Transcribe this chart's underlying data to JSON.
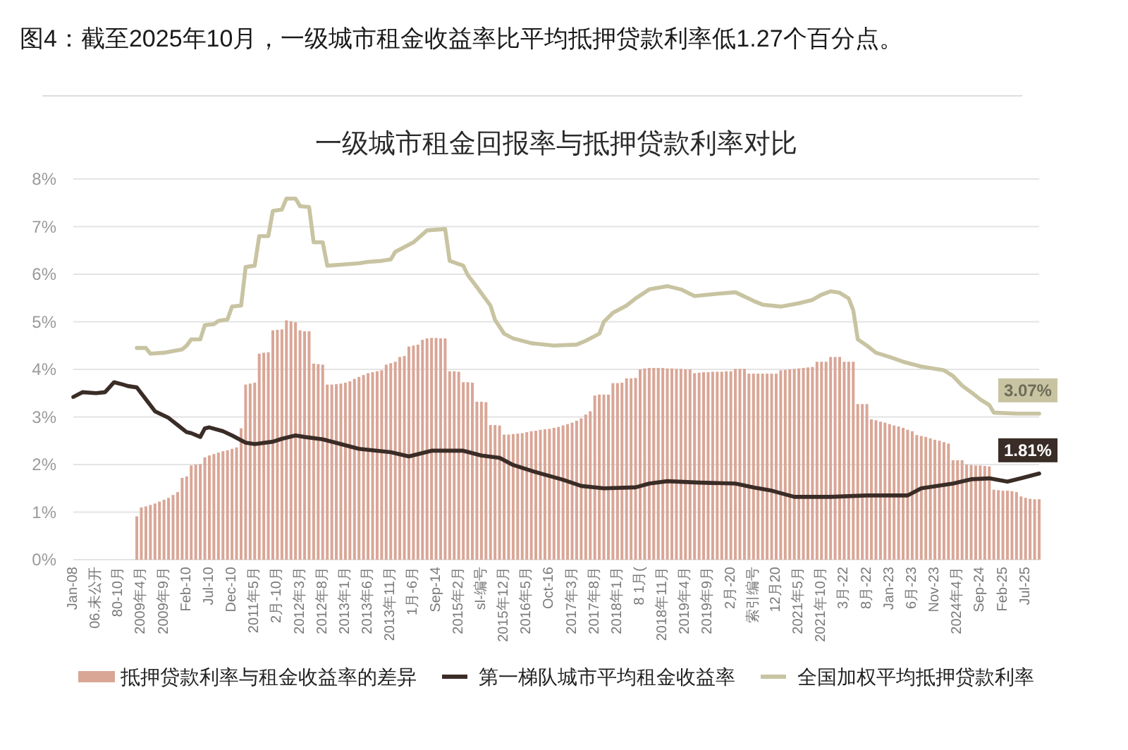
{
  "chart_data": {
    "type": "bar",
    "title": "图4：截至2025年10月，一级城市租金收益率比平均抵押贷款利率低1.27个百分点。",
    "subtitle": "一级城市租金回报率与抵押贷款利率对比",
    "xlim": [
      "2008-01",
      "2025-10"
    ],
    "xticks": [
      {
        "value": "2008-01",
        "label": "Jan-08"
      },
      {
        "value": "2008-06",
        "label": "06.未公开"
      },
      {
        "value": "2008-11",
        "label": "80-10月"
      },
      {
        "value": "2009-04",
        "label": "2009年4月"
      },
      {
        "value": "2009-09",
        "label": "2009年9月"
      },
      {
        "value": "2010-02",
        "label": "Feb-10"
      },
      {
        "value": "2010-07",
        "label": "Jul-10"
      },
      {
        "value": "2010-12",
        "label": "Dec-10"
      },
      {
        "value": "2011-05",
        "label": "2011年5月"
      },
      {
        "value": "2011-10",
        "label": "2月-10月"
      },
      {
        "value": "2012-03",
        "label": "2012年3月"
      },
      {
        "value": "2012-08",
        "label": "2012年8月"
      },
      {
        "value": "2013-01",
        "label": "2013年1月"
      },
      {
        "value": "2013-06",
        "label": "2013年6月"
      },
      {
        "value": "2013-11",
        "label": "2013年11月"
      },
      {
        "value": "2014-04",
        "label": "1月-6月"
      },
      {
        "value": "2014-09",
        "label": "Sep-14"
      },
      {
        "value": "2015-02",
        "label": "2015年2月"
      },
      {
        "value": "2015-07",
        "label": "sl-编号"
      },
      {
        "value": "2015-12",
        "label": "2015年12月"
      },
      {
        "value": "2016-05",
        "label": "2016年5月"
      },
      {
        "value": "2016-10",
        "label": "Oct-16"
      },
      {
        "value": "2017-03",
        "label": "2017年3月"
      },
      {
        "value": "2017-08",
        "label": "2017年8月"
      },
      {
        "value": "2018-01",
        "label": "2018年1月"
      },
      {
        "value": "2018-06",
        "label": "8 1月("
      },
      {
        "value": "2018-11",
        "label": "2018年11月"
      },
      {
        "value": "2019-04",
        "label": "2019年4月"
      },
      {
        "value": "2019-09",
        "label": "2019年9月"
      },
      {
        "value": "2020-02",
        "label": "2月-20"
      },
      {
        "value": "2020-07",
        "label": "索引编号"
      },
      {
        "value": "2020-12",
        "label": "12月20"
      },
      {
        "value": "2021-05",
        "label": "2021年5月"
      },
      {
        "value": "2021-10",
        "label": "2021年10月"
      },
      {
        "value": "2022-03",
        "label": "3月-22"
      },
      {
        "value": "2022-08",
        "label": "8月-22"
      },
      {
        "value": "2023-01",
        "label": "Jan-23"
      },
      {
        "value": "2023-06",
        "label": "6月-23"
      },
      {
        "value": "2023-11",
        "label": "Nov-23"
      },
      {
        "value": "2024-04",
        "label": "2024年4月"
      },
      {
        "value": "2024-09",
        "label": "Sep-24"
      },
      {
        "value": "2025-02",
        "label": "Feb-25"
      },
      {
        "value": "2025-07",
        "label": "Jul-25"
      }
    ],
    "ylim": [
      0,
      8
    ],
    "yticks": [
      {
        "value": 0,
        "label": "0%"
      },
      {
        "value": 1,
        "label": "1%"
      },
      {
        "value": 2,
        "label": "2%"
      },
      {
        "value": 3,
        "label": "3%"
      },
      {
        "value": 4,
        "label": "4%"
      },
      {
        "value": 5,
        "label": "5%"
      },
      {
        "value": 6,
        "label": "6%"
      },
      {
        "value": 7,
        "label": "7%"
      },
      {
        "value": 8,
        "label": "8%"
      }
    ],
    "grid": "y",
    "legend": "bottom",
    "series": [
      {
        "name": "抵押贷款利率与租金收益率的差异",
        "color": "#d9a696",
        "x": [
          "2009-03",
          "2009-04",
          "2009-05",
          "2009-06",
          "2009-07",
          "2009-08",
          "2009-09",
          "2009-10",
          "2009-11",
          "2009-12",
          "2010-01",
          "2010-02",
          "2010-03",
          "2010-04",
          "2010-05",
          "2010-06",
          "2010-07",
          "2010-08",
          "2010-09",
          "2010-10",
          "2010-11",
          "2010-12",
          "2011-01",
          "2011-02",
          "2011-03",
          "2011-04",
          "2011-05",
          "2011-06",
          "2011-07",
          "2011-08",
          "2011-09",
          "2011-10",
          "2011-11",
          "2011-12",
          "2012-01",
          "2012-02",
          "2012-03",
          "2012-04",
          "2012-05",
          "2012-06",
          "2012-07",
          "2012-08",
          "2012-09",
          "2012-10",
          "2012-11",
          "2012-12",
          "2013-01",
          "2013-02",
          "2013-03",
          "2013-04",
          "2013-05",
          "2013-06",
          "2013-07",
          "2013-08",
          "2013-09",
          "2013-10",
          "2013-11",
          "2013-12",
          "2014-01",
          "2014-02",
          "2014-03",
          "2014-04",
          "2014-05",
          "2014-06",
          "2014-07",
          "2014-08",
          "2014-09",
          "2014-10",
          "2014-11",
          "2014-12",
          "2015-01",
          "2015-02",
          "2015-03",
          "2015-04",
          "2015-05",
          "2015-06",
          "2015-07",
          "2015-08",
          "2015-09",
          "2015-10",
          "2015-11",
          "2015-12",
          "2016-01",
          "2016-02",
          "2016-03",
          "2016-04",
          "2016-05",
          "2016-06",
          "2016-07",
          "2016-08",
          "2016-09",
          "2016-10",
          "2016-11",
          "2016-12",
          "2017-01",
          "2017-02",
          "2017-03",
          "2017-04",
          "2017-05",
          "2017-06",
          "2017-07",
          "2017-08",
          "2017-09",
          "2017-10",
          "2017-11",
          "2017-12",
          "2018-01",
          "2018-02",
          "2018-03",
          "2018-04",
          "2018-05",
          "2018-06",
          "2018-07",
          "2018-08",
          "2018-09",
          "2018-10",
          "2018-11",
          "2018-12",
          "2019-01",
          "2019-02",
          "2019-03",
          "2019-04",
          "2019-05",
          "2019-06",
          "2019-07",
          "2019-08",
          "2019-09",
          "2019-10",
          "2019-11",
          "2019-12",
          "2020-01",
          "2020-02",
          "2020-03",
          "2020-04",
          "2020-05",
          "2020-06",
          "2020-07",
          "2020-08",
          "2020-09",
          "2020-10",
          "2020-11",
          "2020-12",
          "2021-01",
          "2021-02",
          "2021-03",
          "2021-04",
          "2021-05",
          "2021-06",
          "2021-07",
          "2021-08",
          "2021-09",
          "2021-10",
          "2021-11",
          "2021-12",
          "2022-01",
          "2022-02",
          "2022-03",
          "2022-04",
          "2022-05",
          "2022-06",
          "2022-07",
          "2022-08",
          "2022-09",
          "2022-10",
          "2022-11",
          "2022-12",
          "2023-01",
          "2023-02",
          "2023-03",
          "2023-04",
          "2023-05",
          "2023-06",
          "2023-07",
          "2023-08",
          "2023-09",
          "2023-10",
          "2023-11",
          "2023-12",
          "2024-01",
          "2024-02",
          "2024-03",
          "2024-04",
          "2024-05",
          "2024-06",
          "2024-07",
          "2024-08",
          "2024-09",
          "2024-10",
          "2024-11",
          "2024-12",
          "2025-01",
          "2025-02",
          "2025-03",
          "2025-04",
          "2025-05",
          "2025-06",
          "2025-07",
          "2025-08",
          "2025-09",
          "2025-10"
        ],
        "values": [
          0.91,
          1.1,
          1.12,
          1.15,
          1.18,
          1.22,
          1.26,
          1.3,
          1.36,
          1.42,
          1.72,
          1.75,
          1.98,
          2.0,
          2.01,
          2.15,
          2.19,
          2.22,
          2.25,
          2.28,
          2.3,
          2.33,
          2.36,
          2.76,
          3.68,
          3.7,
          3.72,
          4.33,
          4.35,
          4.36,
          4.82,
          4.83,
          4.84,
          5.03,
          5.01,
          4.99,
          4.82,
          4.8,
          4.8,
          4.12,
          4.11,
          4.1,
          3.68,
          3.68,
          3.69,
          3.7,
          3.72,
          3.75,
          3.8,
          3.84,
          3.88,
          3.92,
          3.94,
          3.96,
          3.98,
          4.1,
          4.13,
          4.16,
          4.26,
          4.28,
          4.48,
          4.5,
          4.52,
          4.62,
          4.65,
          4.66,
          4.66,
          4.65,
          4.65,
          3.96,
          3.96,
          3.95,
          3.73,
          3.73,
          3.72,
          3.32,
          3.32,
          3.31,
          2.83,
          2.83,
          2.82,
          2.63,
          2.63,
          2.64,
          2.65,
          2.66,
          2.68,
          2.7,
          2.71,
          2.73,
          2.74,
          2.75,
          2.77,
          2.79,
          2.82,
          2.85,
          2.88,
          2.92,
          2.97,
          3.05,
          3.12,
          3.45,
          3.47,
          3.47,
          3.47,
          3.71,
          3.71,
          3.72,
          3.81,
          3.81,
          3.82,
          4.0,
          4.02,
          4.03,
          4.03,
          4.03,
          4.03,
          4.02,
          4.02,
          4.01,
          4.01,
          4.0,
          4.0,
          3.92,
          3.93,
          3.94,
          3.94,
          3.95,
          3.95,
          3.95,
          3.96,
          3.96,
          4.01,
          4.01,
          4.01,
          3.91,
          3.91,
          3.91,
          3.91,
          3.91,
          3.91,
          3.91,
          3.98,
          3.99,
          4.0,
          4.01,
          4.02,
          4.03,
          4.04,
          4.05,
          4.16,
          4.16,
          4.16,
          4.26,
          4.26,
          4.26,
          4.16,
          4.16,
          4.16,
          3.27,
          3.27,
          3.27,
          2.95,
          2.93,
          2.9,
          2.88,
          2.85,
          2.82,
          2.8,
          2.77,
          2.73,
          2.7,
          2.62,
          2.6,
          2.58,
          2.55,
          2.52,
          2.5,
          2.47,
          2.44,
          2.09,
          2.09,
          2.09,
          2.0,
          1.99,
          1.98,
          1.98,
          1.97,
          1.96,
          1.47,
          1.46,
          1.45,
          1.45,
          1.44,
          1.42,
          1.33,
          1.3,
          1.28,
          1.27,
          1.27
        ]
      },
      {
        "name": "第一梯队城市平均租金收益率",
        "type": "line",
        "color": "#3a2c26",
        "x": [
          "2008-01",
          "2008-03",
          "2008-06",
          "2008-08",
          "2008-10",
          "2008-12",
          "2009-01",
          "2009-03",
          "2009-05",
          "2009-07",
          "2009-10",
          "2009-12",
          "2010-02",
          "2010-03",
          "2010-05",
          "2010-06",
          "2010-07",
          "2010-10",
          "2010-12",
          "2011-03",
          "2011-05",
          "2011-09",
          "2011-11",
          "2012-02",
          "2012-04",
          "2012-08",
          "2012-12",
          "2013-04",
          "2013-08",
          "2013-11",
          "2014-03",
          "2014-08",
          "2015-03",
          "2015-07",
          "2015-11",
          "2016-02",
          "2016-07",
          "2017-01",
          "2017-05",
          "2017-10",
          "2018-05",
          "2018-08",
          "2018-12",
          "2019-07",
          "2020-03",
          "2020-07",
          "2020-11",
          "2021-04",
          "2021-12",
          "2022-08",
          "2023-05",
          "2023-08",
          "2024-03",
          "2024-07",
          "2024-11",
          "2025-03",
          "2025-06",
          "2025-10"
        ],
        "values": [
          3.42,
          3.52,
          3.5,
          3.52,
          3.73,
          3.68,
          3.65,
          3.62,
          3.37,
          3.12,
          2.98,
          2.83,
          2.68,
          2.66,
          2.58,
          2.76,
          2.78,
          2.7,
          2.61,
          2.46,
          2.43,
          2.48,
          2.54,
          2.61,
          2.58,
          2.53,
          2.43,
          2.33,
          2.29,
          2.26,
          2.17,
          2.29,
          2.29,
          2.19,
          2.14,
          1.99,
          1.84,
          1.68,
          1.55,
          1.5,
          1.52,
          1.6,
          1.65,
          1.62,
          1.6,
          1.52,
          1.45,
          1.32,
          1.32,
          1.35,
          1.35,
          1.5,
          1.6,
          1.69,
          1.71,
          1.64,
          1.71,
          1.81
        ],
        "value_labels": [
          null,
          null,
          null,
          null,
          null,
          null,
          null,
          null,
          null,
          null,
          null,
          null,
          null,
          null,
          null,
          null,
          null,
          null,
          null,
          null,
          null,
          null,
          null,
          null,
          null,
          null,
          null,
          null,
          null,
          null,
          null,
          null,
          null,
          null,
          null,
          null,
          null,
          null,
          null,
          null,
          null,
          null,
          null,
          null,
          null,
          null,
          null,
          null,
          null,
          null,
          null,
          null,
          null,
          null,
          null,
          null,
          null,
          "1.81%"
        ]
      },
      {
        "name": "全国加权平均抵押贷款利率",
        "type": "line",
        "color": "#c8c4a2",
        "x": [
          "2009-03",
          "2009-05",
          "2009-06",
          "2009-09",
          "2010-01",
          "2010-02",
          "2010-03",
          "2010-05",
          "2010-06",
          "2010-08",
          "2010-09",
          "2010-11",
          "2010-12",
          "2011-02",
          "2011-03",
          "2011-05",
          "2011-06",
          "2011-08",
          "2011-09",
          "2011-11",
          "2011-12",
          "2012-02",
          "2012-03",
          "2012-05",
          "2012-06",
          "2012-08",
          "2012-09",
          "2012-12",
          "2013-04",
          "2013-06",
          "2013-09",
          "2013-11",
          "2013-12",
          "2014-02",
          "2014-04",
          "2014-07",
          "2014-11",
          "2014-12",
          "2015-03",
          "2015-04",
          "2015-06",
          "2015-09",
          "2015-10",
          "2015-12",
          "2016-02",
          "2016-06",
          "2016-11",
          "2017-04",
          "2017-06",
          "2017-09",
          "2017-10",
          "2017-12",
          "2018-03",
          "2018-05",
          "2018-08",
          "2018-12",
          "2019-03",
          "2019-06",
          "2019-11",
          "2020-03",
          "2020-07",
          "2020-09",
          "2021-01",
          "2021-05",
          "2021-08",
          "2021-10",
          "2021-12",
          "2022-02",
          "2022-04",
          "2022-05",
          "2022-06",
          "2022-08",
          "2022-10",
          "2023-01",
          "2023-04",
          "2023-08",
          "2024-01",
          "2024-03",
          "2024-05",
          "2024-07",
          "2024-09",
          "2024-11",
          "2024-12",
          "2025-05",
          "2025-10"
        ],
        "values": [
          4.45,
          4.45,
          4.33,
          4.35,
          4.42,
          4.5,
          4.63,
          4.63,
          4.93,
          4.95,
          5.02,
          5.05,
          5.32,
          5.34,
          6.15,
          6.18,
          6.8,
          6.8,
          7.33,
          7.36,
          7.59,
          7.59,
          7.43,
          7.41,
          6.67,
          6.67,
          6.18,
          6.2,
          6.23,
          6.26,
          6.28,
          6.31,
          6.47,
          6.57,
          6.67,
          6.92,
          6.95,
          6.28,
          6.18,
          5.98,
          5.73,
          5.34,
          5.04,
          4.75,
          4.65,
          4.55,
          4.5,
          4.52,
          4.6,
          4.75,
          5.0,
          5.19,
          5.34,
          5.49,
          5.68,
          5.75,
          5.68,
          5.54,
          5.59,
          5.62,
          5.44,
          5.36,
          5.32,
          5.39,
          5.46,
          5.57,
          5.64,
          5.61,
          5.49,
          5.24,
          4.63,
          4.5,
          4.35,
          4.26,
          4.16,
          4.06,
          3.98,
          3.86,
          3.66,
          3.52,
          3.37,
          3.25,
          3.09,
          3.07,
          3.07
        ],
        "value_labels": [
          null,
          null,
          null,
          null,
          null,
          null,
          null,
          null,
          null,
          null,
          null,
          null,
          null,
          null,
          null,
          null,
          null,
          null,
          null,
          null,
          null,
          null,
          null,
          null,
          null,
          null,
          null,
          null,
          null,
          null,
          null,
          null,
          null,
          null,
          null,
          null,
          null,
          null,
          null,
          null,
          null,
          null,
          null,
          null,
          null,
          null,
          null,
          null,
          null,
          null,
          null,
          null,
          null,
          null,
          null,
          null,
          null,
          null,
          null,
          null,
          null,
          null,
          null,
          null,
          null,
          null,
          null,
          null,
          null,
          null,
          null,
          null,
          null,
          null,
          null,
          null,
          null,
          null,
          null,
          null,
          null,
          null,
          null,
          null,
          "3.07%"
        ]
      }
    ]
  }
}
